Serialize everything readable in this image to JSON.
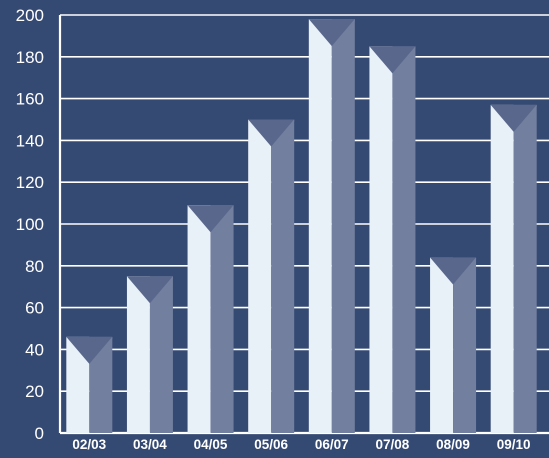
{
  "chart_data": {
    "type": "bar",
    "title": "",
    "xlabel": "",
    "ylabel": "",
    "categories": [
      "02/03",
      "03/04",
      "04/05",
      "05/06",
      "06/07",
      "07/08",
      "08/09",
      "09/10"
    ],
    "values": [
      46,
      75,
      109,
      150,
      198,
      185,
      84,
      157
    ],
    "ylim": [
      0,
      200
    ],
    "yticks": [
      0,
      20,
      40,
      60,
      80,
      100,
      120,
      140,
      160,
      180,
      200
    ],
    "grid": true,
    "legend": "none"
  },
  "colors": {
    "background": "#354a73",
    "plot_area": "#354a73",
    "gridline": "#ffffff",
    "bar_light": "#e8f0f8",
    "bar_dark": "#727f9f",
    "bar_top": "#59678c",
    "text": "#ffffff"
  }
}
